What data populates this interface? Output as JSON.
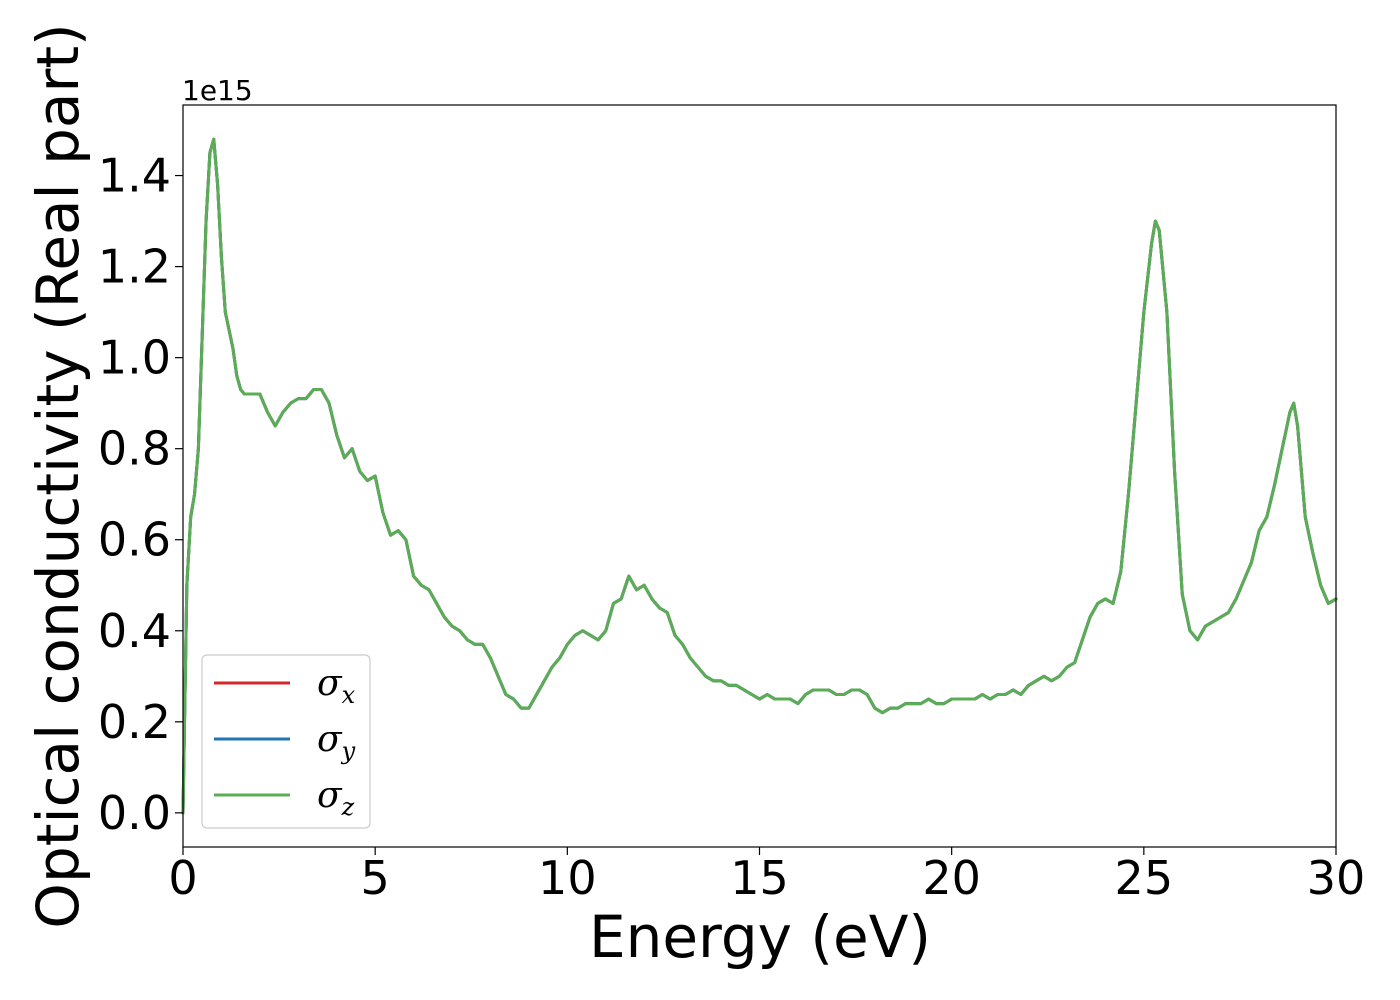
{
  "chart_data": {
    "type": "line",
    "title": "",
    "xlabel": "Energy (eV)",
    "ylabel": "Optical conductivity (Real part)",
    "offset_text": "1e15",
    "xlim": [
      0,
      30
    ],
    "ylim": [
      -0.075,
      1.555
    ],
    "x_ticks": [
      0,
      5,
      10,
      15,
      20,
      25,
      30
    ],
    "x_tick_labels": [
      "0",
      "5",
      "10",
      "15",
      "20",
      "25",
      "30"
    ],
    "y_ticks": [
      0.0,
      0.2,
      0.4,
      0.6,
      0.8,
      1.0,
      1.2,
      1.4
    ],
    "y_tick_labels": [
      "0.0",
      "0.2",
      "0.4",
      "0.6",
      "0.8",
      "1.0",
      "1.2",
      "1.4"
    ],
    "y_scale_factor": 1000000000000000.0,
    "grid": false,
    "legend_position": "lower-left",
    "x": [
      0,
      0.1,
      0.2,
      0.3,
      0.4,
      0.5,
      0.6,
      0.7,
      0.8,
      0.9,
      1.0,
      1.1,
      1.2,
      1.3,
      1.4,
      1.5,
      1.6,
      1.8,
      2.0,
      2.2,
      2.4,
      2.6,
      2.8,
      3.0,
      3.2,
      3.4,
      3.6,
      3.8,
      4.0,
      4.2,
      4.4,
      4.6,
      4.8,
      5.0,
      5.2,
      5.4,
      5.6,
      5.8,
      6.0,
      6.2,
      6.4,
      6.6,
      6.8,
      7.0,
      7.2,
      7.4,
      7.6,
      7.8,
      8.0,
      8.2,
      8.4,
      8.6,
      8.8,
      9.0,
      9.2,
      9.4,
      9.6,
      9.8,
      10.0,
      10.2,
      10.4,
      10.6,
      10.8,
      11.0,
      11.2,
      11.4,
      11.6,
      11.8,
      12.0,
      12.2,
      12.4,
      12.6,
      12.8,
      13.0,
      13.2,
      13.4,
      13.6,
      13.8,
      14.0,
      14.2,
      14.4,
      14.6,
      14.8,
      15.0,
      15.2,
      15.4,
      15.6,
      15.8,
      16.0,
      16.2,
      16.4,
      16.6,
      16.8,
      17.0,
      17.2,
      17.4,
      17.6,
      17.8,
      18.0,
      18.2,
      18.4,
      18.6,
      18.8,
      19.0,
      19.2,
      19.4,
      19.6,
      19.8,
      20.0,
      20.2,
      20.4,
      20.6,
      20.8,
      21.0,
      21.2,
      21.4,
      21.6,
      21.8,
      22.0,
      22.2,
      22.4,
      22.6,
      22.8,
      23.0,
      23.2,
      23.4,
      23.6,
      23.8,
      24.0,
      24.2,
      24.4,
      24.6,
      24.8,
      25.0,
      25.2,
      25.3,
      25.4,
      25.6,
      25.8,
      26.0,
      26.2,
      26.4,
      26.6,
      26.8,
      27.0,
      27.2,
      27.4,
      27.6,
      27.8,
      28.0,
      28.2,
      28.4,
      28.6,
      28.8,
      28.9,
      29.0,
      29.2,
      29.4,
      29.6,
      29.8,
      30.0
    ],
    "series": [
      {
        "name": "σx",
        "color": "#d62728",
        "values": [
          0.0,
          0.5,
          0.65,
          0.7,
          0.8,
          1.05,
          1.3,
          1.45,
          1.48,
          1.38,
          1.22,
          1.1,
          1.06,
          1.02,
          0.96,
          0.93,
          0.92,
          0.92,
          0.92,
          0.88,
          0.85,
          0.88,
          0.9,
          0.91,
          0.91,
          0.93,
          0.93,
          0.9,
          0.83,
          0.78,
          0.8,
          0.75,
          0.73,
          0.74,
          0.66,
          0.61,
          0.62,
          0.6,
          0.52,
          0.5,
          0.49,
          0.46,
          0.43,
          0.41,
          0.4,
          0.38,
          0.37,
          0.37,
          0.34,
          0.3,
          0.26,
          0.25,
          0.23,
          0.23,
          0.26,
          0.29,
          0.32,
          0.34,
          0.37,
          0.39,
          0.4,
          0.39,
          0.38,
          0.4,
          0.46,
          0.47,
          0.52,
          0.49,
          0.5,
          0.47,
          0.45,
          0.44,
          0.39,
          0.37,
          0.34,
          0.32,
          0.3,
          0.29,
          0.29,
          0.28,
          0.28,
          0.27,
          0.26,
          0.25,
          0.26,
          0.25,
          0.25,
          0.25,
          0.24,
          0.26,
          0.27,
          0.27,
          0.27,
          0.26,
          0.26,
          0.27,
          0.27,
          0.26,
          0.23,
          0.22,
          0.23,
          0.23,
          0.24,
          0.24,
          0.24,
          0.25,
          0.24,
          0.24,
          0.25,
          0.25,
          0.25,
          0.25,
          0.26,
          0.25,
          0.26,
          0.26,
          0.27,
          0.26,
          0.28,
          0.29,
          0.3,
          0.29,
          0.3,
          0.32,
          0.33,
          0.38,
          0.43,
          0.46,
          0.47,
          0.46,
          0.53,
          0.7,
          0.9,
          1.1,
          1.25,
          1.3,
          1.28,
          1.1,
          0.75,
          0.48,
          0.4,
          0.38,
          0.41,
          0.42,
          0.43,
          0.44,
          0.47,
          0.51,
          0.55,
          0.62,
          0.65,
          0.72,
          0.8,
          0.88,
          0.9,
          0.85,
          0.65,
          0.57,
          0.5,
          0.46,
          0.47
        ]
      },
      {
        "name": "σy",
        "color": "#1f77b4",
        "values": [
          0.0,
          0.5,
          0.65,
          0.7,
          0.8,
          1.05,
          1.3,
          1.45,
          1.48,
          1.38,
          1.22,
          1.1,
          1.06,
          1.02,
          0.96,
          0.93,
          0.92,
          0.92,
          0.92,
          0.88,
          0.85,
          0.88,
          0.9,
          0.91,
          0.91,
          0.93,
          0.93,
          0.9,
          0.83,
          0.78,
          0.8,
          0.75,
          0.73,
          0.74,
          0.66,
          0.61,
          0.62,
          0.6,
          0.52,
          0.5,
          0.49,
          0.46,
          0.43,
          0.41,
          0.4,
          0.38,
          0.37,
          0.37,
          0.34,
          0.3,
          0.26,
          0.25,
          0.23,
          0.23,
          0.26,
          0.29,
          0.32,
          0.34,
          0.37,
          0.39,
          0.4,
          0.39,
          0.38,
          0.4,
          0.46,
          0.47,
          0.52,
          0.49,
          0.5,
          0.47,
          0.45,
          0.44,
          0.39,
          0.37,
          0.34,
          0.32,
          0.3,
          0.29,
          0.29,
          0.28,
          0.28,
          0.27,
          0.26,
          0.25,
          0.26,
          0.25,
          0.25,
          0.25,
          0.24,
          0.26,
          0.27,
          0.27,
          0.27,
          0.26,
          0.26,
          0.27,
          0.27,
          0.26,
          0.23,
          0.22,
          0.23,
          0.23,
          0.24,
          0.24,
          0.24,
          0.25,
          0.24,
          0.24,
          0.25,
          0.25,
          0.25,
          0.25,
          0.26,
          0.25,
          0.26,
          0.26,
          0.27,
          0.26,
          0.28,
          0.29,
          0.3,
          0.29,
          0.3,
          0.32,
          0.33,
          0.38,
          0.43,
          0.46,
          0.47,
          0.46,
          0.53,
          0.7,
          0.9,
          1.1,
          1.25,
          1.3,
          1.28,
          1.1,
          0.75,
          0.48,
          0.4,
          0.38,
          0.41,
          0.42,
          0.43,
          0.44,
          0.47,
          0.51,
          0.55,
          0.62,
          0.65,
          0.72,
          0.8,
          0.88,
          0.9,
          0.85,
          0.65,
          0.57,
          0.5,
          0.46,
          0.47
        ]
      },
      {
        "name": "σz",
        "color": "#5aad55",
        "values": [
          0.0,
          0.5,
          0.65,
          0.7,
          0.8,
          1.05,
          1.3,
          1.45,
          1.48,
          1.38,
          1.22,
          1.1,
          1.06,
          1.02,
          0.96,
          0.93,
          0.92,
          0.92,
          0.92,
          0.88,
          0.85,
          0.88,
          0.9,
          0.91,
          0.91,
          0.93,
          0.93,
          0.9,
          0.83,
          0.78,
          0.8,
          0.75,
          0.73,
          0.74,
          0.66,
          0.61,
          0.62,
          0.6,
          0.52,
          0.5,
          0.49,
          0.46,
          0.43,
          0.41,
          0.4,
          0.38,
          0.37,
          0.37,
          0.34,
          0.3,
          0.26,
          0.25,
          0.23,
          0.23,
          0.26,
          0.29,
          0.32,
          0.34,
          0.37,
          0.39,
          0.4,
          0.39,
          0.38,
          0.4,
          0.46,
          0.47,
          0.52,
          0.49,
          0.5,
          0.47,
          0.45,
          0.44,
          0.39,
          0.37,
          0.34,
          0.32,
          0.3,
          0.29,
          0.29,
          0.28,
          0.28,
          0.27,
          0.26,
          0.25,
          0.26,
          0.25,
          0.25,
          0.25,
          0.24,
          0.26,
          0.27,
          0.27,
          0.27,
          0.26,
          0.26,
          0.27,
          0.27,
          0.26,
          0.23,
          0.22,
          0.23,
          0.23,
          0.24,
          0.24,
          0.24,
          0.25,
          0.24,
          0.24,
          0.25,
          0.25,
          0.25,
          0.25,
          0.26,
          0.25,
          0.26,
          0.26,
          0.27,
          0.26,
          0.28,
          0.29,
          0.3,
          0.29,
          0.3,
          0.32,
          0.33,
          0.38,
          0.43,
          0.46,
          0.47,
          0.46,
          0.53,
          0.7,
          0.9,
          1.1,
          1.25,
          1.3,
          1.28,
          1.1,
          0.75,
          0.48,
          0.4,
          0.38,
          0.41,
          0.42,
          0.43,
          0.44,
          0.47,
          0.51,
          0.55,
          0.62,
          0.65,
          0.72,
          0.8,
          0.88,
          0.9,
          0.85,
          0.65,
          0.57,
          0.5,
          0.46,
          0.47
        ]
      }
    ],
    "legend": [
      {
        "symbol": "σ",
        "subscript": "x",
        "color": "#d62728"
      },
      {
        "symbol": "σ",
        "subscript": "y",
        "color": "#1f77b4"
      },
      {
        "symbol": "σ",
        "subscript": "z",
        "color": "#5aad55"
      }
    ]
  }
}
